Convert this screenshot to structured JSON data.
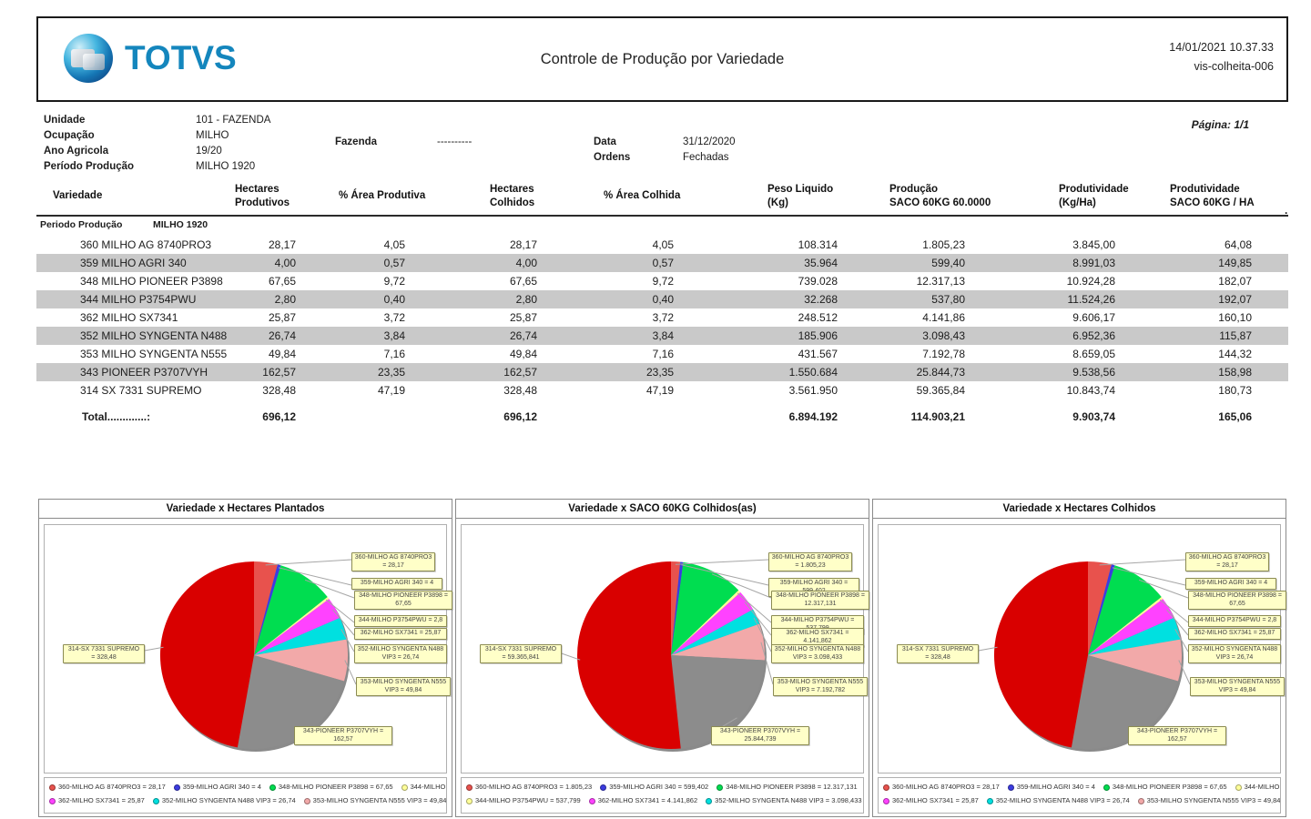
{
  "header": {
    "logo_text": "TOTVS",
    "title": "Controle de Produção por Variedade",
    "datetime": "14/01/2021 10.37.33",
    "report_id": "vis-colheita-006"
  },
  "meta": {
    "unidade_label": "Unidade",
    "unidade": "101 - FAZENDA",
    "ocupacao_label": "Ocupação",
    "ocupacao": "MILHO",
    "ano_label": "Ano Agricola",
    "ano": "19/20",
    "periodo_label": "Período Produção",
    "periodo": "MILHO 1920",
    "fazenda_label": "Fazenda",
    "fazenda": "----------",
    "data_label": "Data",
    "data": "31/12/2020",
    "ordens_label": "Ordens",
    "ordens": "Fechadas",
    "pagina": "Página: 1/1"
  },
  "table": {
    "columns": [
      "Variedade",
      "Hectares\nProdutivos",
      "% Área Produtiva",
      "Hectares\nColhidos",
      "% Área Colhida",
      "Peso Liquido\n(Kg)",
      "Produção\nSACO 60KG 60.0000",
      "Produtividade\n(Kg/Ha)",
      "Produtividade\nSACO 60KG / HA"
    ],
    "group_label": "Periodo Produção",
    "group_value": "MILHO 1920",
    "stray_dot": ".",
    "rows": [
      [
        "360 MILHO AG 8740PRO3",
        "28,17",
        "4,05",
        "28,17",
        "4,05",
        "108.314",
        "1.805,23",
        "3.845,00",
        "64,08"
      ],
      [
        "359 MILHO AGRI 340",
        "4,00",
        "0,57",
        "4,00",
        "0,57",
        "35.964",
        "599,40",
        "8.991,03",
        "149,85"
      ],
      [
        "348 MILHO PIONEER P3898",
        "67,65",
        "9,72",
        "67,65",
        "9,72",
        "739.028",
        "12.317,13",
        "10.924,28",
        "182,07"
      ],
      [
        "344 MILHO P3754PWU",
        "2,80",
        "0,40",
        "2,80",
        "0,40",
        "32.268",
        "537,80",
        "11.524,26",
        "192,07"
      ],
      [
        "362 MILHO SX7341",
        "25,87",
        "3,72",
        "25,87",
        "3,72",
        "248.512",
        "4.141,86",
        "9.606,17",
        "160,10"
      ],
      [
        "352 MILHO SYNGENTA N488",
        "26,74",
        "3,84",
        "26,74",
        "3,84",
        "185.906",
        "3.098,43",
        "6.952,36",
        "115,87"
      ],
      [
        "353 MILHO SYNGENTA N555",
        "49,84",
        "7,16",
        "49,84",
        "7,16",
        "431.567",
        "7.192,78",
        "8.659,05",
        "144,32"
      ],
      [
        "343 PIONEER P3707VYH",
        "162,57",
        "23,35",
        "162,57",
        "23,35",
        "1.550.684",
        "25.844,73",
        "9.538,56",
        "158,98"
      ],
      [
        "314 SX 7331 SUPREMO",
        "328,48",
        "47,19",
        "328,48",
        "47,19",
        "3.561.950",
        "59.365,84",
        "10.843,74",
        "180,73"
      ]
    ],
    "total_label": "Total.............:",
    "totals": [
      "696,12",
      "",
      "696,12",
      "",
      "6.894.192",
      "114.903,21",
      "9.903,74",
      "165,06"
    ]
  },
  "colors": {
    "totvs_blue": "#1486bd",
    "row_stripe": "#c9c9c9",
    "callout_bg": "#ffffc8",
    "header_line": "#2a2a2a"
  },
  "chart_data": [
    {
      "type": "pie",
      "title": "Variedade x Hectares Plantados",
      "legend_position": "bottom",
      "labels": [
        "360-MILHO AG 8740PRO3",
        "359-MILHO AGRI 340",
        "348-MILHO PIONEER P3898",
        "344-MILHO P3754PWU",
        "362-MILHO SX7341",
        "352-MILHO SYNGENTA N488 VIP3",
        "353-MILHO SYNGENTA N555 VIP3",
        "343-PIONEER P3707VYH",
        "314-SX 7331 SUPREMO"
      ],
      "values": [
        28.17,
        4,
        67.65,
        2.8,
        25.87,
        26.74,
        49.84,
        162.57,
        328.48
      ],
      "value_labels": [
        "28,17",
        "4",
        "67,65",
        "2,8",
        "25,87",
        "26,74",
        "49,84",
        "162,57",
        "328,48"
      ],
      "colors": [
        "#e8524d",
        "#3c3ce0",
        "#00dd50",
        "#ffff99",
        "#ff42ff",
        "#00e0e0",
        "#f2a9a9",
        "#8c8c8c",
        "#d90000"
      ],
      "legend_lines": [
        [
          0,
          1,
          2,
          3
        ],
        [
          4,
          5,
          6
        ]
      ]
    },
    {
      "type": "pie",
      "title": "Variedade x SACO 60KG Colhidos(as)",
      "legend_position": "bottom",
      "labels": [
        "360-MILHO AG 8740PRO3",
        "359-MILHO AGRI 340",
        "348-MILHO PIONEER P3898",
        "344-MILHO P3754PWU",
        "362-MILHO SX7341",
        "352-MILHO SYNGENTA N488 VIP3",
        "353-MILHO SYNGENTA N555 VIP3",
        "343-PIONEER P3707VYH",
        "314-SX 7331 SUPREMO"
      ],
      "values": [
        1805.23,
        599.402,
        12317.131,
        537.799,
        4141.862,
        3098.433,
        7192.782,
        25844.739,
        59365.841
      ],
      "value_labels": [
        "1.805,23",
        "599,402",
        "12.317,131",
        "537,799",
        "4.141,862",
        "3.098,433",
        "7.192,782",
        "25.844,739",
        "59.365,841"
      ],
      "colors": [
        "#e8524d",
        "#3c3ce0",
        "#00dd50",
        "#ffff99",
        "#ff42ff",
        "#00e0e0",
        "#f2a9a9",
        "#8c8c8c",
        "#d90000"
      ],
      "legend_lines": [
        [
          0,
          1,
          2
        ],
        [
          3,
          4,
          5
        ]
      ]
    },
    {
      "type": "pie",
      "title": "Variedade x Hectares Colhidos",
      "legend_position": "bottom",
      "labels": [
        "360-MILHO AG 8740PRO3",
        "359-MILHO AGRI 340",
        "348-MILHO PIONEER P3898",
        "344-MILHO P3754PWU",
        "362-MILHO SX7341",
        "352-MILHO SYNGENTA N488 VIP3",
        "353-MILHO SYNGENTA N555 VIP3",
        "343-PIONEER P3707VYH",
        "314-SX 7331 SUPREMO"
      ],
      "values": [
        28.17,
        4,
        67.65,
        2.8,
        25.87,
        26.74,
        49.84,
        162.57,
        328.48
      ],
      "value_labels": [
        "28,17",
        "4",
        "67,65",
        "2,8",
        "25,87",
        "26,74",
        "49,84",
        "162,57",
        "328,48"
      ],
      "colors": [
        "#e8524d",
        "#3c3ce0",
        "#00dd50",
        "#ffff99",
        "#ff42ff",
        "#00e0e0",
        "#f2a9a9",
        "#8c8c8c",
        "#d90000"
      ],
      "legend_lines": [
        [
          0,
          1,
          2,
          3
        ],
        [
          4,
          5,
          6
        ]
      ]
    }
  ]
}
